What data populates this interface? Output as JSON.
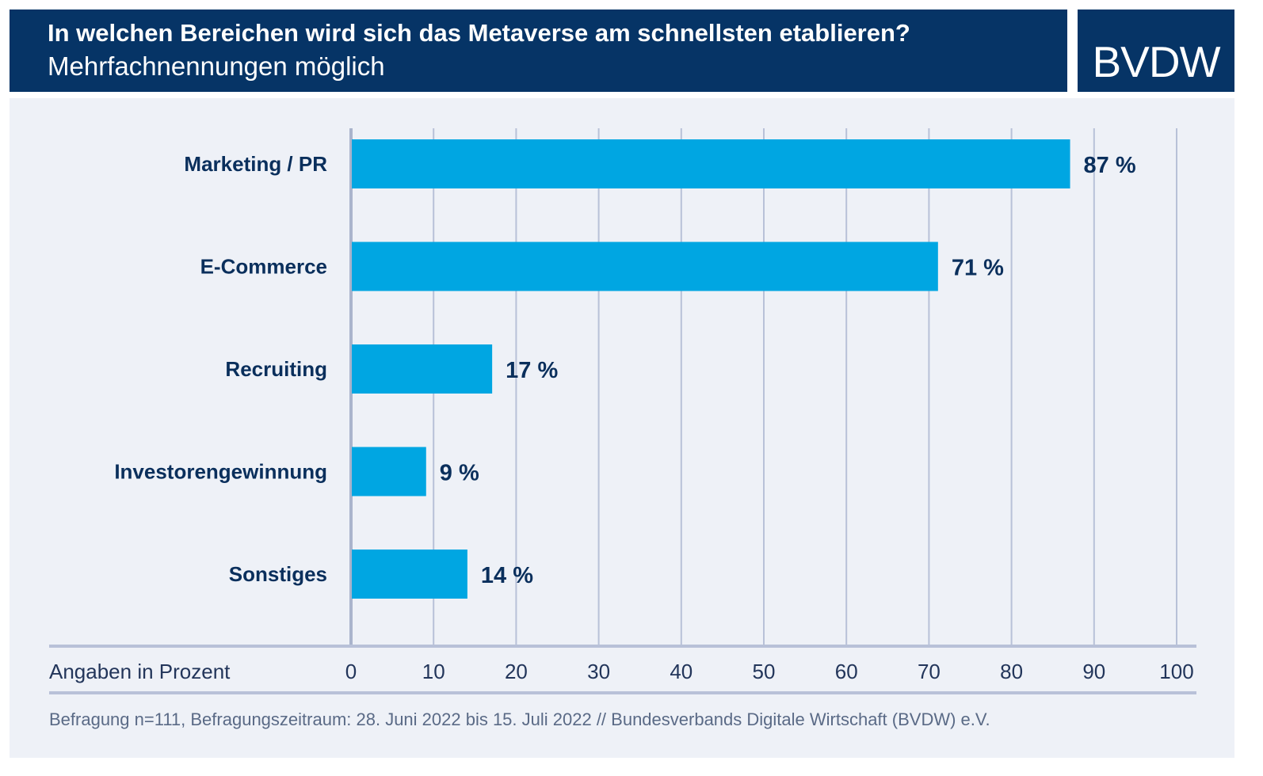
{
  "header": {
    "title": "In welchen Bereichen wird sich das Metaverse am schnellsten etablieren?",
    "subtitle": "Mehrfachnennungen möglich",
    "logo_text": "BVDW"
  },
  "colors": {
    "header_bg": "#063466",
    "panel_bg": "#eef1f7",
    "bar": "#00a6e2",
    "text": "#0a2f5c",
    "grid": "#b8c1d8"
  },
  "chart_data": {
    "type": "bar",
    "orientation": "horizontal",
    "categories": [
      "Marketing / PR",
      "E-Commerce",
      "Recruiting",
      "Investorengewinnung",
      "Sonstiges"
    ],
    "values": [
      87,
      71,
      17,
      9,
      14
    ],
    "value_labels": [
      "87 %",
      "71 %",
      "17 %",
      "9 %",
      "14 %"
    ],
    "xlim": [
      0,
      100
    ],
    "xticks": [
      0,
      10,
      20,
      30,
      40,
      50,
      60,
      70,
      80,
      90,
      100
    ],
    "xlabel": "Angaben in Prozent",
    "grid": true
  },
  "footer": {
    "source": "Befragung n=111, Befragungszeitraum: 28. Juni 2022 bis 15. Juli 2022 // Bundesverbands Digitale Wirtschaft (BVDW) e.V."
  }
}
